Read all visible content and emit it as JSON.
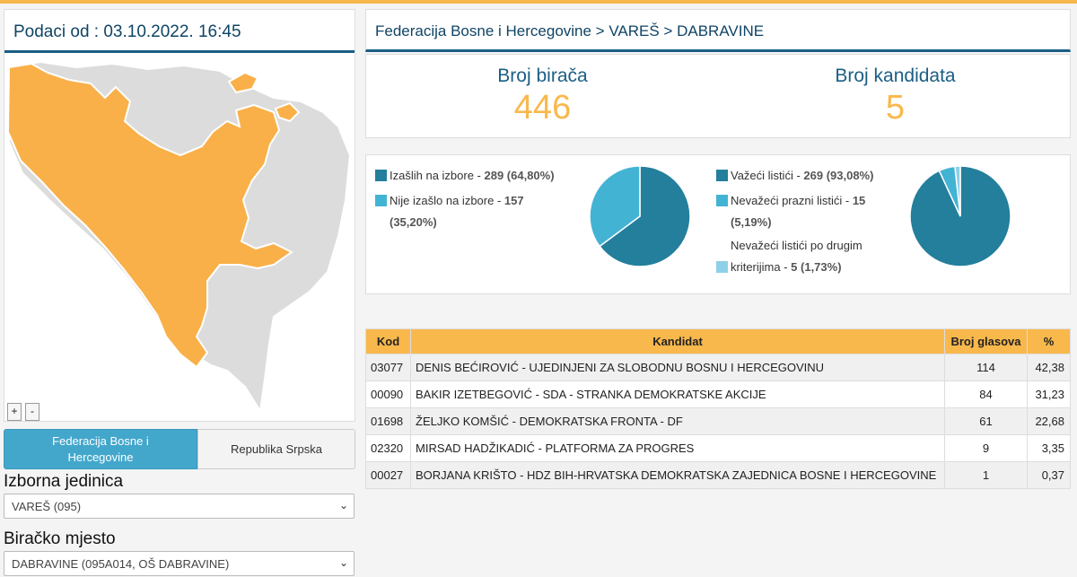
{
  "header": {
    "data_from": "Podaci od : 03.10.2022. 16:45"
  },
  "map": {
    "zoom_in": "+",
    "zoom_out": "-"
  },
  "entity_tabs": [
    {
      "label": "Federacija Bosne i Hercegovine",
      "active": true
    },
    {
      "label": "Republika Srpska",
      "active": false
    }
  ],
  "filters": {
    "electoral_unit": {
      "label": "Izborna jedinica",
      "value": "VAREŠ (095)"
    },
    "polling_station": {
      "label": "Biračko mjesto",
      "value": "DABRAVINE (095A014, OŠ DABRAVINE)"
    }
  },
  "breadcrumb": "Federacija Bosne i Hercegovine > VAREŠ > DABRAVINE",
  "stats": {
    "voters_label": "Broj birača",
    "voters_value": "446",
    "candidates_label": "Broj kandidata",
    "candidates_value": "5"
  },
  "colors": {
    "accent": "#f9b84c",
    "primary": "#1b5e85",
    "dark_teal": "#237f9c",
    "light_teal": "#43b3d4",
    "pale_blue": "#8ed0e8"
  },
  "turnout": {
    "voted_text": "Izašlih na izbore - ",
    "voted_value": "289 (64,80%)",
    "voted_fraction": 0.648,
    "not_voted_text": "Nije izašlo na izbore - ",
    "not_voted_value_1": "157",
    "not_voted_value_2": "(35,20%)",
    "not_voted_fraction": 0.352
  },
  "ballots": {
    "valid_text": "Važeći listići - ",
    "valid_value": "269 (93,08%)",
    "valid_fraction": 0.9308,
    "blank_text": "Nevažeći prazni listići - ",
    "blank_value_1": "15",
    "blank_value_2": "(5,19%)",
    "blank_fraction": 0.0519,
    "other_text_1": "Nevažeći listići po drugim",
    "other_text_2": "kriterijima - ",
    "other_value": "5 (1,73%)",
    "other_fraction": 0.0173
  },
  "table": {
    "headers": {
      "code": "Kod",
      "candidate": "Kandidat",
      "votes": "Broj glasova",
      "pct": "%"
    },
    "rows": [
      {
        "code": "03077",
        "candidate": "DENIS BEĆIROVIĆ - UJEDINJENI ZA SLOBODNU BOSNU I HERCEGOVINU",
        "votes": "114",
        "pct": "42,38"
      },
      {
        "code": "00090",
        "candidate": "BAKIR IZETBEGOVIĆ - SDA - STRANKA DEMOKRATSKE AKCIJE",
        "votes": "84",
        "pct": "31,23"
      },
      {
        "code": "01698",
        "candidate": "ŽELJKO KOMŠIĆ - DEMOKRATSKA FRONTA - DF",
        "votes": "61",
        "pct": "22,68"
      },
      {
        "code": "02320",
        "candidate": "MIRSAD HADŽIKADIĆ - PLATFORMA ZA PROGRES",
        "votes": "9",
        "pct": "3,35"
      },
      {
        "code": "00027",
        "candidate": "BORJANA KRIŠTO - HDZ BIH-HRVATSKA DEMOKRATSKA ZAJEDNICA BOSNE I HERCEGOVINE",
        "votes": "1",
        "pct": "0,37"
      }
    ]
  }
}
